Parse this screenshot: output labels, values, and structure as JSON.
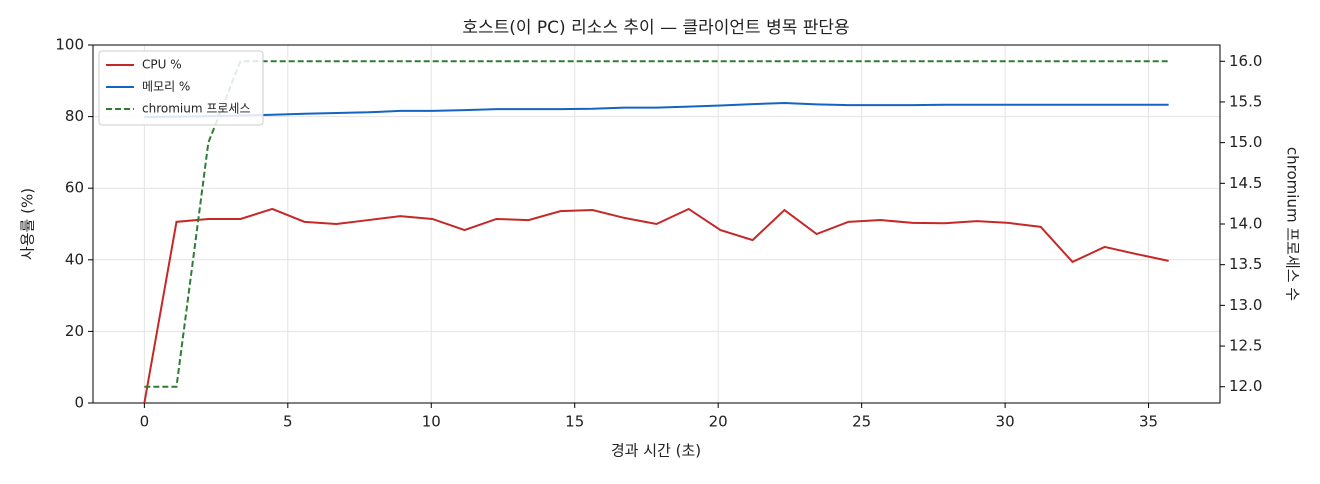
{
  "chart_data": {
    "type": "line",
    "title": "호스트(이 PC) 리소스 추이 — 클라이언트 병목 판단용",
    "xlabel": "경과 시간 (초)",
    "ylabel": "사용률 (%)",
    "y2label": "chromium 프로세스 수",
    "x": [
      0,
      1.12,
      2.23,
      3.35,
      4.46,
      5.58,
      6.69,
      7.81,
      8.92,
      10.04,
      11.16,
      12.27,
      13.39,
      14.5,
      15.62,
      16.73,
      17.85,
      18.97,
      20.08,
      21.2,
      22.31,
      23.43,
      24.54,
      25.66,
      26.78,
      27.89,
      29.01,
      30.12,
      31.24,
      32.35,
      33.47,
      34.58,
      35.7
    ],
    "series": [
      {
        "name": "CPU %",
        "color": "#c62828",
        "values": [
          0,
          50.6,
          51.4,
          51.4,
          54.2,
          50.6,
          50.0,
          51.1,
          52.2,
          51.4,
          48.3,
          51.4,
          51.1,
          53.6,
          53.9,
          51.7,
          50.0,
          54.2,
          48.3,
          45.5,
          53.9,
          47.2,
          50.6,
          51.1,
          50.3,
          50.2,
          50.8,
          50.3,
          49.2,
          39.4,
          43.6,
          41.6,
          39.7
        ]
      },
      {
        "name": "메모리 %",
        "color": "#1565c0",
        "values": [
          79.9,
          80.0,
          80.1,
          80.3,
          80.5,
          80.8,
          81.0,
          81.2,
          81.6,
          81.6,
          81.8,
          82.1,
          82.1,
          82.1,
          82.2,
          82.5,
          82.5,
          82.8,
          83.1,
          83.5,
          83.8,
          83.4,
          83.2,
          83.2,
          83.2,
          83.3,
          83.3,
          83.3,
          83.3,
          83.3,
          83.3,
          83.3,
          83.3
        ]
      },
      {
        "name": "chromium 프로세스",
        "color": "#2e7d32",
        "dashed": true,
        "axis": "y2",
        "values": [
          12,
          12,
          15,
          16,
          16,
          16,
          16,
          16,
          16,
          16,
          16,
          16,
          16,
          16,
          16,
          16,
          16,
          16,
          16,
          16,
          16,
          16,
          16,
          16,
          16,
          16,
          16,
          16,
          16,
          16,
          16,
          16,
          16
        ]
      }
    ],
    "xlim": [
      -1.79,
      37.49
    ],
    "xticks": [
      0,
      5,
      10,
      15,
      20,
      25,
      30,
      35
    ],
    "ylim": [
      0,
      100
    ],
    "yticks": [
      0,
      20,
      40,
      60,
      80,
      100
    ],
    "y2lim": [
      11.8,
      16.2
    ],
    "y2ticks": [
      {
        "value": 12,
        "label": "12.0"
      },
      12.5,
      {
        "value": 13,
        "label": "13.0"
      },
      13.5,
      {
        "value": 14,
        "label": "14.0"
      },
      14.5,
      {
        "value": 15,
        "label": "15.0"
      },
      15.5,
      {
        "value": 16,
        "label": "16.0"
      }
    ],
    "grid": true,
    "legend": "upper-left"
  }
}
